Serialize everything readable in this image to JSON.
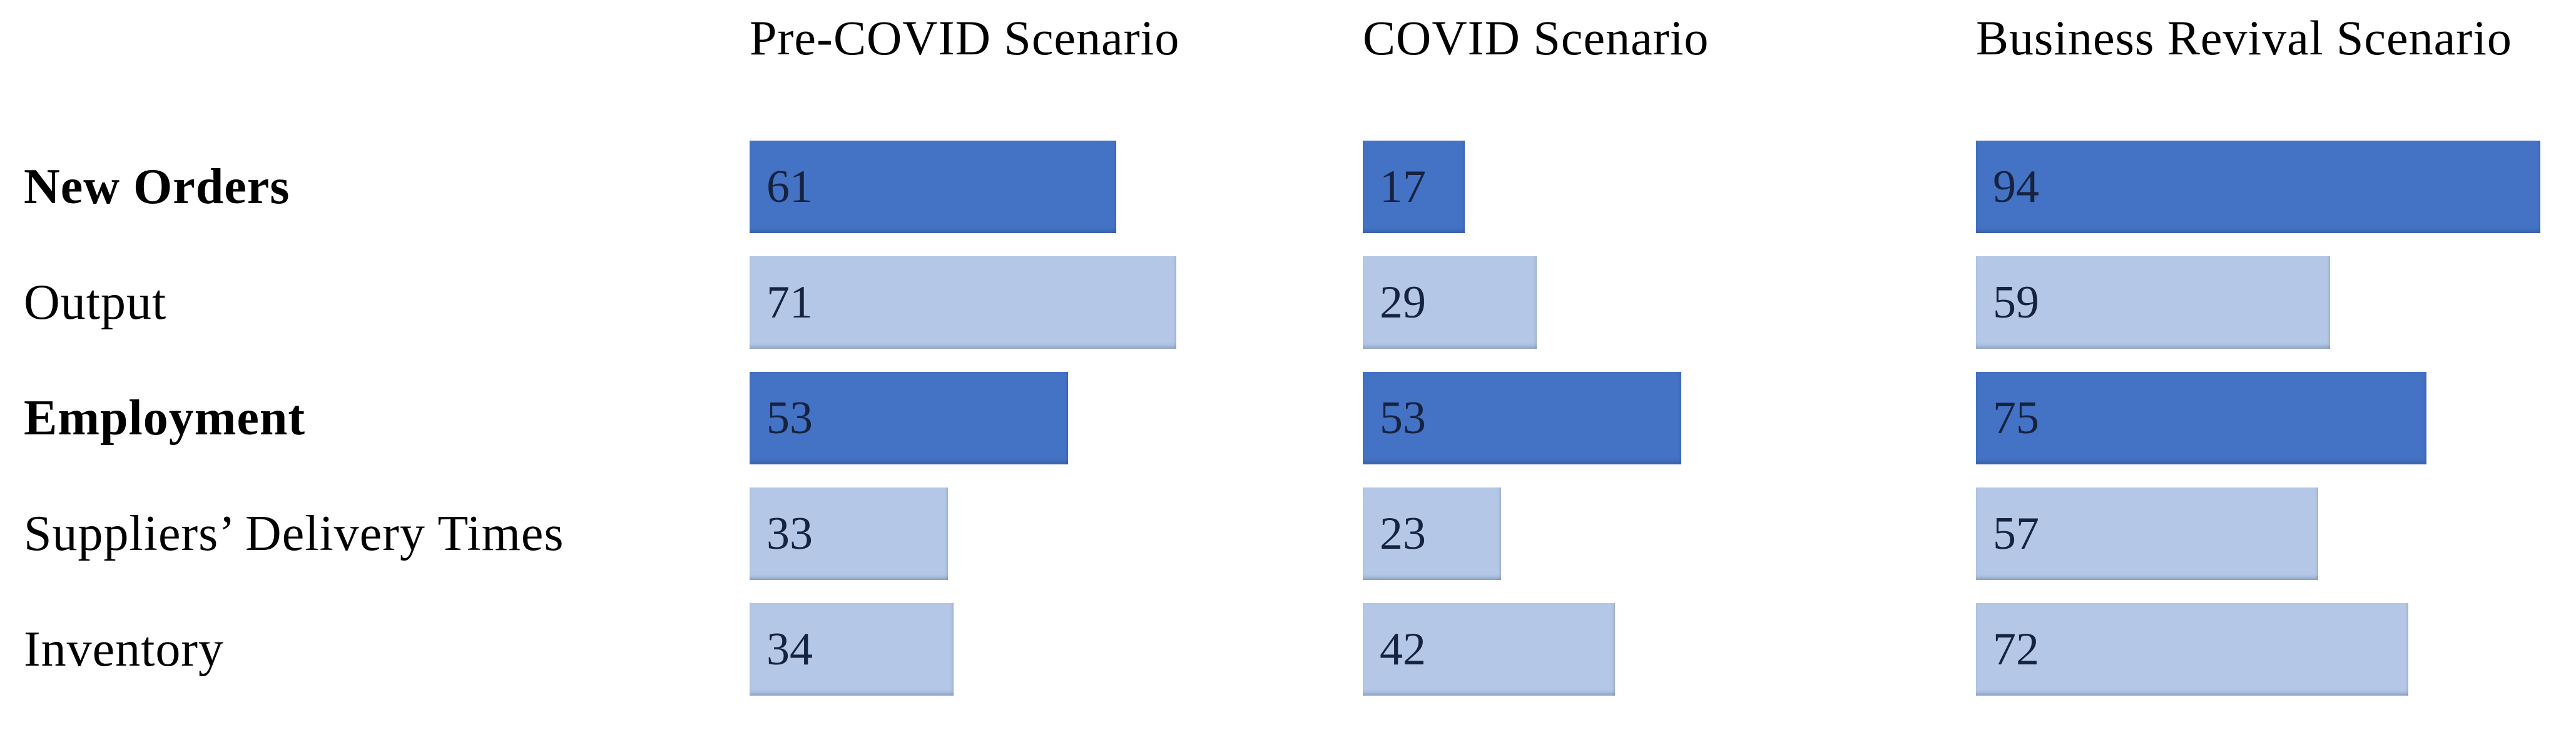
{
  "chart_data": {
    "type": "bar",
    "orientation": "horizontal",
    "title": "",
    "categories": [
      "New Orders",
      "Output",
      "Employment",
      "Suppliers’ Delivery Times",
      "Inventory"
    ],
    "category_bold": [
      true,
      false,
      true,
      false,
      false
    ],
    "series": [
      {
        "name": "Pre-COVID Scenario",
        "values": [
          61,
          71,
          53,
          33,
          34
        ]
      },
      {
        "name": "COVID Scenario",
        "values": [
          17,
          29,
          53,
          23,
          42
        ]
      },
      {
        "name": "Business Revival Scenario",
        "values": [
          94,
          59,
          75,
          57,
          72
        ]
      }
    ],
    "value_labels": "inside-left",
    "legend": "none",
    "axis": {
      "min": 0,
      "implied_max": 100,
      "gridlines": false,
      "ticks_shown": false,
      "axis_lines_shown": false
    },
    "colors": {
      "bold_row_bar": "#4472C4",
      "regular_row_bar": "#B4C7E7",
      "value_label_text": "#16233F",
      "row_label_text": "#000000",
      "header_text": "#000000",
      "background": "#FFFFFF"
    }
  }
}
